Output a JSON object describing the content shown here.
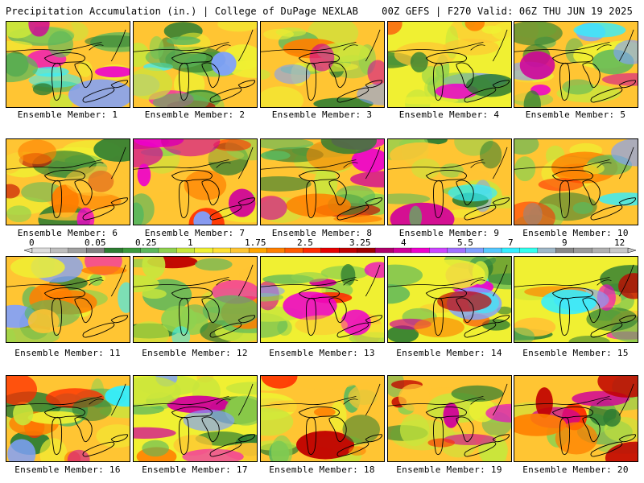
{
  "header": {
    "title_left": "Precipitation Accumulation (in.) | College of DuPage NEXLAB",
    "title_right": "00Z GEFS | F270 Valid: 06Z THU JUN 19 2025"
  },
  "panels": [
    {
      "label": "Ensemble Member: 1"
    },
    {
      "label": "Ensemble Member: 2"
    },
    {
      "label": "Ensemble Member: 3"
    },
    {
      "label": "Ensemble Member: 4"
    },
    {
      "label": "Ensemble Member: 5"
    },
    {
      "label": "Ensemble Member: 6"
    },
    {
      "label": "Ensemble Member: 7"
    },
    {
      "label": "Ensemble Member: 8"
    },
    {
      "label": "Ensemble Member: 9"
    },
    {
      "label": "Ensemble Member: 10"
    },
    {
      "label": "Ensemble Member: 11"
    },
    {
      "label": "Ensemble Member: 12"
    },
    {
      "label": "Ensemble Member: 13"
    },
    {
      "label": "Ensemble Member: 14"
    },
    {
      "label": "Ensemble Member: 15"
    },
    {
      "label": "Ensemble Member: 16"
    },
    {
      "label": "Ensemble Member: 17"
    },
    {
      "label": "Ensemble Member: 18"
    },
    {
      "label": "Ensemble Member: 19"
    },
    {
      "label": "Ensemble Member: 20"
    }
  ],
  "colorbar": {
    "tick_labels": [
      "0",
      "0.05",
      "0.25",
      "1",
      "1.75",
      "2.5",
      "3.25",
      "4",
      "5.5",
      "7",
      "9",
      "12"
    ],
    "colors": [
      "#dcdcdc",
      "#bebebe",
      "#a0a0a0",
      "#828282",
      "#2e7d32",
      "#3d9a3d",
      "#5cb85c",
      "#8fd14f",
      "#c8e63c",
      "#f0f032",
      "#ffe033",
      "#ffc533",
      "#ffa500",
      "#ff7f00",
      "#ff5a00",
      "#ff2a00",
      "#e60000",
      "#c00000",
      "#a00000",
      "#b0006a",
      "#d0009a",
      "#ee00cc",
      "#cc44ff",
      "#a070ff",
      "#7fa0ff",
      "#55c8ff",
      "#33eeff",
      "#33ffee",
      "#9fb8c8",
      "#888888",
      "#9a9a9a",
      "#b0b0b0",
      "#c8c8c8"
    ]
  }
}
